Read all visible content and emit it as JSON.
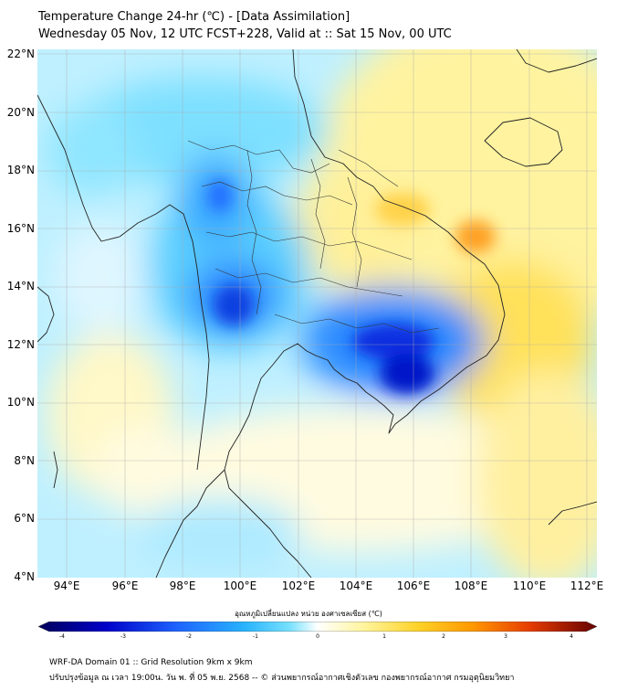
{
  "title": {
    "line1": "Temperature Change 24-hr (℃) - [Data Assimilation]",
    "line2": "Wednesday 05 Nov, 12 UTC FCST+228, Valid at :: Sat 15 Nov, 00 UTC"
  },
  "map": {
    "lat_labels": [
      "22°N",
      "20°N",
      "18°N",
      "16°N",
      "14°N",
      "12°N",
      "10°N",
      "8°N",
      "6°N",
      "4°N"
    ],
    "lon_labels": [
      "94°E",
      "96°E",
      "98°E",
      "100°E",
      "102°E",
      "104°E",
      "106°E",
      "108°E",
      "110°E",
      "112°E"
    ]
  },
  "colorbar": {
    "label": "อุณหภูมิเปลี่ยนแปลง หน่วย องศาเซลเซียส (℃)",
    "ticks": [
      "-4",
      "-3",
      "-2",
      "-1",
      "0",
      "1",
      "2",
      "3",
      "4"
    ],
    "range": [
      -4,
      4
    ],
    "colors": [
      "#00005a",
      "#0000c8",
      "#1e64ff",
      "#28b4ff",
      "#78e1ff",
      "#ffffff",
      "#fff5a0",
      "#ffd228",
      "#ff9600",
      "#e63c00",
      "#640000"
    ]
  },
  "footer": {
    "line1": "WRF-DA Domain 01 :: Grid Resolution 9km x 9km",
    "line2": "ปรับปรุงข้อมูล ณ เวลา 19:00น. วัน พ. ที่ 05 พ.ย. 2568 -- © ส่วนพยากรณ์อากาศเชิงตัวเลข กองพยากรณ์อากาศ กรมอุตุนิยมวิทยา"
  }
}
